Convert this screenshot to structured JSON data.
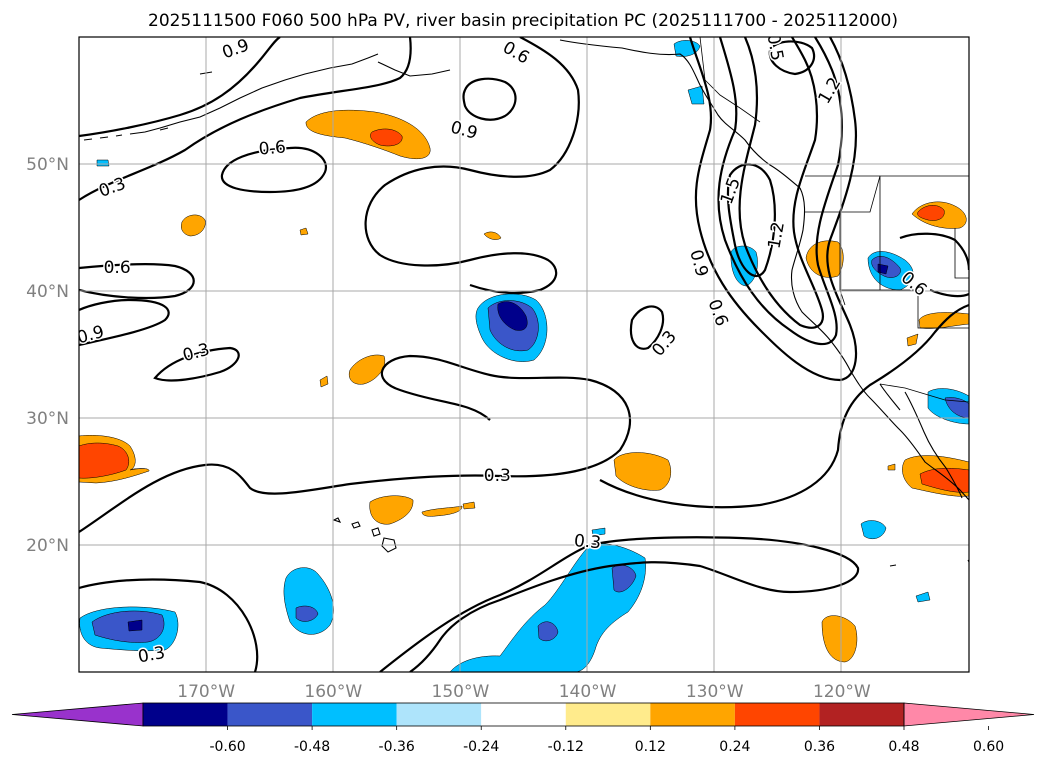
{
  "title": "2025111500 F060 500 hPa PV, river basin precipitation PC (2025111700 - 2025112000)",
  "map": {
    "lon_range": [
      -180,
      -110
    ],
    "lat_range": [
      10,
      60
    ],
    "lat_labels": [
      {
        "lat": 50,
        "text": "50°N"
      },
      {
        "lat": 40,
        "text": "40°N"
      },
      {
        "lat": 30,
        "text": "30°N"
      },
      {
        "lat": 20,
        "text": "20°N"
      }
    ],
    "lon_labels": [
      {
        "lon": -170,
        "text": "170°W"
      },
      {
        "lon": -160,
        "text": "160°W"
      },
      {
        "lon": -150,
        "text": "150°W"
      },
      {
        "lon": -140,
        "text": "140°W"
      },
      {
        "lon": -130,
        "text": "130°W"
      },
      {
        "lon": -120,
        "text": "120°W"
      }
    ],
    "contour_labels": [
      {
        "text": "0.9",
        "lon": -167.7,
        "lat": 59.1,
        "rot": -20
      },
      {
        "text": "0.6",
        "lon": -145.6,
        "lat": 58.8,
        "rot": 30
      },
      {
        "text": "0.5",
        "lon": -125.2,
        "lat": 59.2,
        "rot": 80
      },
      {
        "text": "1.2",
        "lon": -121.0,
        "lat": 55.8,
        "rot": -60
      },
      {
        "text": "0.9",
        "lon": -149.7,
        "lat": 52.7,
        "rot": 15
      },
      {
        "text": "0.6",
        "lon": -164.8,
        "lat": 51.3,
        "rot": -5
      },
      {
        "text": "0.3",
        "lon": -177.4,
        "lat": 48.2,
        "rot": -20
      },
      {
        "text": "1.5",
        "lon": -128.8,
        "lat": 47.9,
        "rot": -70
      },
      {
        "text": "1.2",
        "lon": -125.2,
        "lat": 44.4,
        "rot": -80
      },
      {
        "text": "0.9",
        "lon": -131.2,
        "lat": 42.2,
        "rot": 75
      },
      {
        "text": "0.6",
        "lon": -114.3,
        "lat": 40.6,
        "rot": 40
      },
      {
        "text": "0.6",
        "lon": -177.0,
        "lat": 41.9,
        "rot": 0
      },
      {
        "text": "0.6",
        "lon": -129.7,
        "lat": 38.3,
        "rot": 70
      },
      {
        "text": "0.3",
        "lon": -134.0,
        "lat": 35.9,
        "rot": -50
      },
      {
        "text": "0.9",
        "lon": -179.1,
        "lat": 36.6,
        "rot": -15
      },
      {
        "text": "0.3",
        "lon": -170.8,
        "lat": 35.2,
        "rot": -15
      },
      {
        "text": "0.3",
        "lon": -147.1,
        "lat": 25.5,
        "rot": 0
      },
      {
        "text": "0.3",
        "lon": -140.0,
        "lat": 20.3,
        "rot": 5
      },
      {
        "text": "0.3",
        "lon": -174.3,
        "lat": 11.4,
        "rot": -10
      }
    ]
  },
  "colorbar": {
    "ticks": [
      "-0.60",
      "-0.48",
      "-0.36",
      "-0.24",
      "-0.12",
      "0.12",
      "0.24",
      "0.36",
      "0.48",
      "0.60"
    ],
    "colors": [
      "#9932cc",
      "#00008b",
      "#3a56c9",
      "#00bfff",
      "#aee4fb",
      "#ffffff",
      "#ffeb8c",
      "#ffa500",
      "#ff4500",
      "#b22222",
      "#ff88a8",
      "#ff88a8"
    ]
  },
  "palette": {
    "pos_low": "#ffa500",
    "pos_mid": "#ff4500",
    "neg_low": "#00bfff",
    "neg_mid": "#3a56c9",
    "neg_high": "#00008b"
  }
}
